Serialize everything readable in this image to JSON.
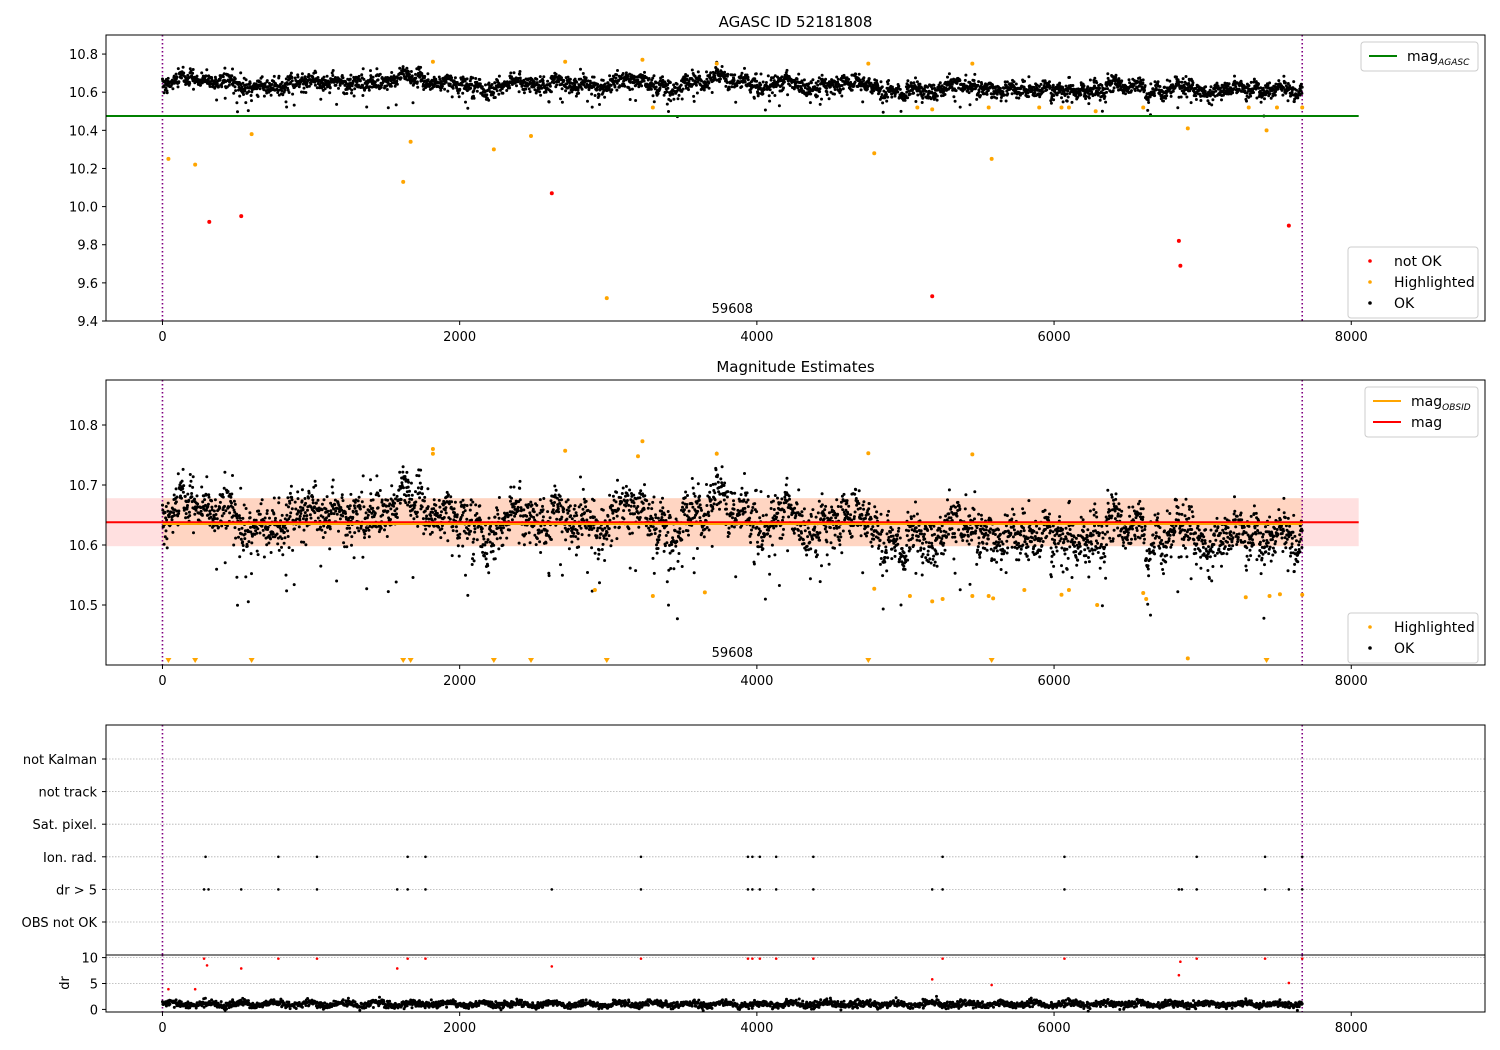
{
  "chart_data": [
    {
      "type": "scatter",
      "title": "AGASC ID 52181808",
      "xlim": [
        -380,
        8900
      ],
      "ylim": [
        9.4,
        10.9
      ],
      "x_ticks": [
        0,
        2000,
        4000,
        6000,
        8000
      ],
      "x_tick_labels": [
        "0",
        "2000",
        "4000",
        "6000",
        "8000"
      ],
      "y_ticks": [
        9.4,
        9.6,
        9.8,
        10.0,
        10.2,
        10.4,
        10.6,
        10.8
      ],
      "y_tick_labels": [
        "9.4",
        "9.6",
        "9.8",
        "10.0",
        "10.2",
        "10.4",
        "10.6",
        "10.8"
      ],
      "annotation": "59608",
      "annotation_x": 3835,
      "vlines": [
        0,
        7670
      ],
      "hline": {
        "name": "mag_AGASC",
        "y": 10.475,
        "x_range": [
          -380,
          8050
        ],
        "color": "#008000"
      },
      "ok_band": {
        "x_range": [
          0,
          7670
        ],
        "base": 10.645,
        "late_base": 10.615,
        "spread": 0.045
      },
      "legend_top": [
        {
          "label": "mag",
          "sub": "AGASC",
          "color": "#008000",
          "kind": "line"
        }
      ],
      "legend_bottom": [
        {
          "label": "not OK",
          "color": "#ff0000",
          "kind": "dot"
        },
        {
          "label": "Highlighted",
          "color": "#ffa500",
          "kind": "dot"
        },
        {
          "label": "OK",
          "color": "#000000",
          "kind": "dot"
        }
      ],
      "series": [
        {
          "name": "not OK",
          "color": "#ff0000",
          "points": [
            [
              315,
              9.92
            ],
            [
              530,
              9.95
            ],
            [
              2620,
              10.07
            ],
            [
              5180,
              9.53
            ],
            [
              6840,
              9.82
            ],
            [
              6850,
              9.69
            ],
            [
              7580,
              9.9
            ]
          ]
        },
        {
          "name": "Highlighted",
          "color": "#ffa500",
          "points": [
            [
              40,
              10.25
            ],
            [
              220,
              10.22
            ],
            [
              600,
              10.38
            ],
            [
              1620,
              10.13
            ],
            [
              1670,
              10.34
            ],
            [
              1820,
              10.76
            ],
            [
              2230,
              10.3
            ],
            [
              2480,
              10.37
            ],
            [
              2710,
              10.76
            ],
            [
              2990,
              9.52
            ],
            [
              3230,
              10.77
            ],
            [
              3300,
              10.52
            ],
            [
              3730,
              10.75
            ],
            [
              4750,
              10.75
            ],
            [
              4790,
              10.28
            ],
            [
              5080,
              10.52
            ],
            [
              5180,
              10.51
            ],
            [
              5450,
              10.75
            ],
            [
              5580,
              10.25
            ],
            [
              5560,
              10.52
            ],
            [
              5900,
              10.52
            ],
            [
              6050,
              10.52
            ],
            [
              6100,
              10.52
            ],
            [
              6280,
              10.5
            ],
            [
              6600,
              10.52
            ],
            [
              6900,
              10.41
            ],
            [
              7310,
              10.52
            ],
            [
              7430,
              10.4
            ],
            [
              7500,
              10.52
            ],
            [
              7670,
              10.52
            ]
          ]
        }
      ]
    },
    {
      "type": "scatter",
      "title": "Magnitude Estimates",
      "xlim": [
        -380,
        8900
      ],
      "ylim": [
        10.4,
        10.875
      ],
      "x_ticks": [
        0,
        2000,
        4000,
        6000,
        8000
      ],
      "x_tick_labels": [
        "0",
        "2000",
        "4000",
        "6000",
        "8000"
      ],
      "y_ticks": [
        10.5,
        10.6,
        10.7,
        10.8
      ],
      "y_tick_labels": [
        "10.5",
        "10.6",
        "10.7",
        "10.8"
      ],
      "annotation": "59608",
      "annotation_x": 3835,
      "vlines": [
        0,
        7670
      ],
      "mean_line": {
        "name": "mag",
        "y": 10.638,
        "x_range": [
          -380,
          8050
        ],
        "color": "#ff0000"
      },
      "obsid_line": {
        "name": "mag_OBSID",
        "y": 10.635,
        "x_range": [
          0,
          7670
        ],
        "color": "#ffa500"
      },
      "band": {
        "y_range": [
          10.598,
          10.678
        ],
        "x_range": [
          -380,
          8050
        ]
      },
      "ok_band": {
        "x_range": [
          0,
          7670
        ],
        "base": 10.645,
        "late_base": 10.615,
        "spread": 0.04
      },
      "legend_top": [
        {
          "label": "mag",
          "sub": "OBSID",
          "color": "#ffa500",
          "kind": "line"
        },
        {
          "label": "mag",
          "sub": "",
          "color": "#ff0000",
          "kind": "line"
        }
      ],
      "legend_bottom": [
        {
          "label": "Highlighted",
          "color": "#ffa500",
          "kind": "dot"
        },
        {
          "label": "OK",
          "color": "#000000",
          "kind": "dot"
        }
      ],
      "series": [
        {
          "name": "Highlighted",
          "color": "#ffa500",
          "points": [
            [
              1820,
              10.76
            ],
            [
              1820,
              10.752
            ],
            [
              2710,
              10.757
            ],
            [
              3230,
              10.773
            ],
            [
              3200,
              10.748
            ],
            [
              3730,
              10.752
            ],
            [
              4750,
              10.753
            ],
            [
              5450,
              10.751
            ],
            [
              2910,
              10.525
            ],
            [
              3300,
              10.515
            ],
            [
              3650,
              10.521
            ],
            [
              4790,
              10.527
            ],
            [
              5030,
              10.515
            ],
            [
              5180,
              10.506
            ],
            [
              5250,
              10.51
            ],
            [
              5450,
              10.515
            ],
            [
              5560,
              10.515
            ],
            [
              5590,
              10.511
            ],
            [
              5800,
              10.525
            ],
            [
              6050,
              10.517
            ],
            [
              6100,
              10.525
            ],
            [
              6290,
              10.5
            ],
            [
              6600,
              10.52
            ],
            [
              6620,
              10.51
            ],
            [
              7290,
              10.513
            ],
            [
              7450,
              10.515
            ],
            [
              7520,
              10.518
            ],
            [
              7670,
              10.517
            ],
            [
              6900,
              10.411
            ]
          ]
        },
        {
          "name": "Highlighted (off-axis)",
          "color": "#ffa500",
          "x": [
            40,
            220,
            600,
            1620,
            1670,
            2230,
            2480,
            2990,
            4750,
            5580,
            7430
          ]
        }
      ]
    },
    {
      "type": "scatter",
      "title": "",
      "xlim": [
        -380,
        8900
      ],
      "x_ticks": [
        0,
        2000,
        4000,
        6000,
        8000
      ],
      "x_tick_labels": [
        "0",
        "2000",
        "4000",
        "6000",
        "8000"
      ],
      "vlines": [
        0,
        7670
      ],
      "flag_rows": [
        "not Kalman",
        "not track",
        "Sat. pixel.",
        "Ion. rad.",
        "dr > 5",
        "OBS not OK"
      ],
      "flags": {
        "Ion. rad.": [
          290,
          780,
          1040,
          1650,
          1770,
          3220,
          3940,
          3970,
          4020,
          4130,
          4380,
          5250,
          6070,
          6960,
          7420,
          7670
        ],
        "dr > 5": [
          280,
          310,
          530,
          780,
          1040,
          1580,
          1650,
          1770,
          2620,
          3220,
          3940,
          3970,
          4020,
          4130,
          4380,
          5180,
          5250,
          6070,
          6840,
          6860,
          6960,
          7420,
          7580,
          7670
        ]
      },
      "dr": {
        "ylabel": "dr",
        "ylim": [
          -0.5,
          10.5
        ],
        "y_ticks": [
          0,
          5,
          10
        ],
        "y_tick_labels": [
          "0",
          "5",
          "10"
        ],
        "red_points": [
          [
            40,
            3.9
          ],
          [
            220,
            3.9
          ],
          [
            280,
            9.8
          ],
          [
            300,
            8.5
          ],
          [
            530,
            7.9
          ],
          [
            780,
            9.8
          ],
          [
            1040,
            9.8
          ],
          [
            1580,
            7.9
          ],
          [
            1650,
            9.8
          ],
          [
            1770,
            9.8
          ],
          [
            2620,
            8.3
          ],
          [
            3220,
            9.8
          ],
          [
            3940,
            9.8
          ],
          [
            3970,
            9.8
          ],
          [
            4020,
            9.8
          ],
          [
            4130,
            9.8
          ],
          [
            4380,
            9.8
          ],
          [
            5180,
            5.8
          ],
          [
            5250,
            9.8
          ],
          [
            5580,
            4.7
          ],
          [
            6070,
            9.8
          ],
          [
            6840,
            6.6
          ],
          [
            6850,
            9.2
          ],
          [
            6960,
            9.8
          ],
          [
            7420,
            9.8
          ],
          [
            7580,
            5.1
          ],
          [
            7670,
            9.8
          ]
        ],
        "black_band": {
          "x_range": [
            0,
            7670
          ],
          "base": 1.0,
          "spread": 0.55
        }
      }
    }
  ]
}
